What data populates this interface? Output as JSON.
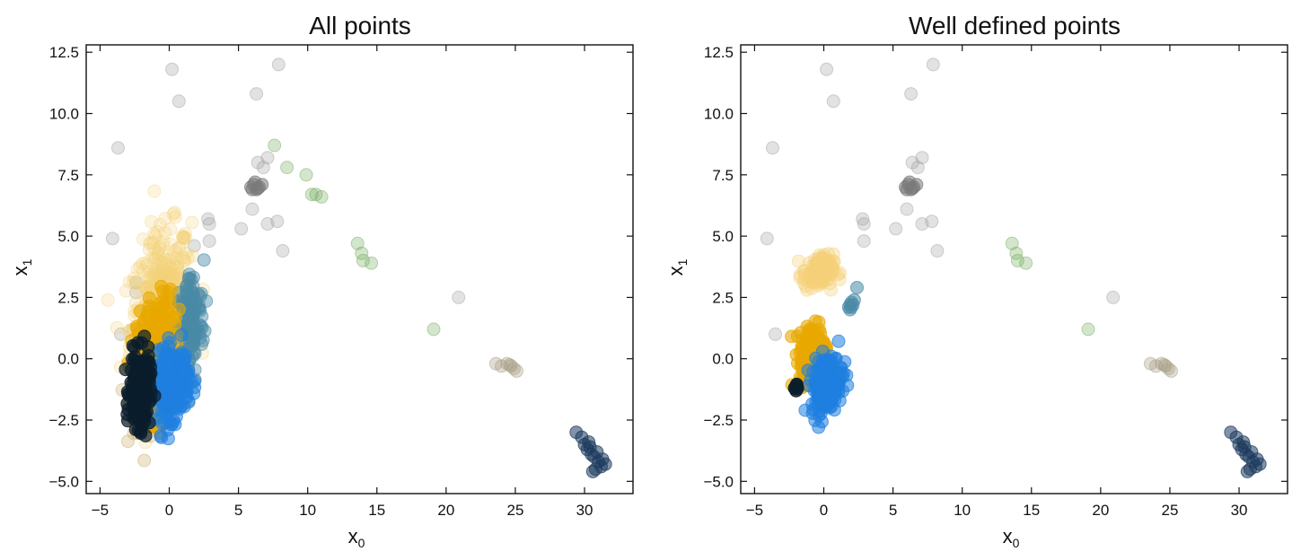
{
  "chart_data": [
    {
      "type": "scatter",
      "title": "All points",
      "xlabel": "x",
      "xlabel_sub": "0",
      "ylabel": "x",
      "ylabel_sub": "1",
      "xlim": [
        -6,
        33.5
      ],
      "ylim": [
        -5.5,
        12.8
      ],
      "xticks": [
        -5,
        0,
        5,
        10,
        15,
        20,
        25,
        30
      ],
      "xtick_labels": [
        "−5",
        "0",
        "5",
        "10",
        "15",
        "20",
        "25",
        "30"
      ],
      "yticks": [
        -5.0,
        -2.5,
        0.0,
        2.5,
        5.0,
        7.5,
        10.0,
        12.5
      ],
      "ytick_labels": [
        "−5.0",
        "−2.5",
        "0.0",
        "2.5",
        "5.0",
        "7.5",
        "10.0",
        "12.5"
      ],
      "grid": false,
      "series": [
        {
          "color": "#9e9e9e",
          "opacity": 0.3,
          "points": [
            [
              -4.1,
              4.9
            ],
            [
              -3.7,
              8.6
            ],
            [
              -3.5,
              1.0
            ],
            [
              -2.4,
              2.7
            ],
            [
              -2.4,
              3.1
            ],
            [
              -2.6,
              1.2
            ],
            [
              0.2,
              11.8
            ],
            [
              0.7,
              10.5
            ],
            [
              1.8,
              4.6
            ],
            [
              2.8,
              5.7
            ],
            [
              2.9,
              4.8
            ],
            [
              2.9,
              5.5
            ],
            [
              5.2,
              5.3
            ],
            [
              6.0,
              6.1
            ],
            [
              6.3,
              10.8
            ],
            [
              6.4,
              8.0
            ],
            [
              6.8,
              7.8
            ],
            [
              7.1,
              8.2
            ],
            [
              7.1,
              5.5
            ],
            [
              7.8,
              5.6
            ],
            [
              7.9,
              12.0
            ],
            [
              8.2,
              4.4
            ],
            [
              20.9,
              2.5
            ]
          ]
        },
        {
          "color": "#7a7a7a",
          "opacity": 0.55,
          "points": [
            [
              5.9,
              7.0
            ],
            [
              6.1,
              7.1
            ],
            [
              6.3,
              6.9
            ],
            [
              6.5,
              7.0
            ],
            [
              6.2,
              7.2
            ],
            [
              6.7,
              7.1
            ],
            [
              6.4,
              6.95
            ],
            [
              6.0,
              6.9
            ]
          ]
        },
        {
          "color": "#6fa85b",
          "opacity": 0.3,
          "points": [
            [
              7.6,
              8.7
            ],
            [
              8.5,
              7.8
            ],
            [
              9.9,
              7.5
            ],
            [
              10.3,
              6.7
            ],
            [
              10.6,
              6.7
            ],
            [
              11.0,
              6.6
            ],
            [
              13.6,
              4.7
            ],
            [
              13.9,
              4.3
            ],
            [
              14.0,
              4.0
            ],
            [
              14.6,
              3.9
            ],
            [
              19.1,
              1.2
            ]
          ]
        },
        {
          "color": "#a79f85",
          "opacity": 0.35,
          "points": [
            [
              23.6,
              -0.2
            ],
            [
              24.0,
              -0.3
            ],
            [
              24.4,
              -0.2
            ],
            [
              24.7,
              -0.3
            ],
            [
              24.9,
              -0.4
            ],
            [
              25.1,
              -0.5
            ],
            [
              24.6,
              -0.25
            ]
          ]
        },
        {
          "color": "#1d3a5e",
          "opacity": 0.55,
          "points": [
            [
              29.4,
              -3.0
            ],
            [
              29.8,
              -3.2
            ],
            [
              30.0,
              -3.5
            ],
            [
              30.2,
              -3.7
            ],
            [
              30.4,
              -3.6
            ],
            [
              30.5,
              -3.9
            ],
            [
              30.7,
              -4.0
            ],
            [
              30.9,
              -3.8
            ],
            [
              31.0,
              -4.2
            ],
            [
              31.2,
              -4.4
            ],
            [
              31.5,
              -4.3
            ],
            [
              30.6,
              -4.6
            ],
            [
              30.8,
              -4.5
            ],
            [
              31.3,
              -4.1
            ],
            [
              30.3,
              -3.4
            ]
          ]
        },
        {
          "color": "#f5d27a",
          "opacity": 0.25,
          "cloud": {
            "n": 420,
            "cx": -0.6,
            "cy": 2.1,
            "rx": 1.1,
            "ry": 1.5,
            "slope": 1.25
          }
        },
        {
          "color": "#c8a964",
          "opacity": 0.3,
          "cloud": {
            "n": 120,
            "cx": -1.4,
            "cy": -1.7,
            "rx": 0.7,
            "ry": 0.6,
            "slope": 0.3
          }
        },
        {
          "color": "#4a8aa6",
          "opacity": 0.45,
          "cloud": {
            "n": 140,
            "cx": 1.5,
            "cy": 1.4,
            "rx": 0.5,
            "ry": 1.1,
            "slope": 1.3
          }
        },
        {
          "color": "#e8a800",
          "opacity": 0.6,
          "cloud": {
            "n": 320,
            "cx": -1.0,
            "cy": 0.0,
            "rx": 0.65,
            "ry": 1.2,
            "slope": 1.1
          }
        },
        {
          "color": "#1f7fe0",
          "opacity": 0.55,
          "cloud": {
            "n": 260,
            "cx": 0.2,
            "cy": -1.0,
            "rx": 0.6,
            "ry": 0.7,
            "slope": 0.7
          }
        },
        {
          "color": "#0a1d2c",
          "opacity": 0.7,
          "cloud": {
            "n": 220,
            "cx": -2.1,
            "cy": -1.3,
            "rx": 0.35,
            "ry": 0.75,
            "slope": 0.3
          }
        }
      ]
    },
    {
      "type": "scatter",
      "title": "Well defined points",
      "xlabel": "x",
      "xlabel_sub": "0",
      "ylabel": "x",
      "ylabel_sub": "1",
      "xlim": [
        -6,
        33.5
      ],
      "ylim": [
        -5.5,
        12.8
      ],
      "xticks": [
        -5,
        0,
        5,
        10,
        15,
        20,
        25,
        30
      ],
      "xtick_labels": [
        "−5",
        "0",
        "5",
        "10",
        "15",
        "20",
        "25",
        "30"
      ],
      "yticks": [
        -5.0,
        -2.5,
        0.0,
        2.5,
        5.0,
        7.5,
        10.0,
        12.5
      ],
      "ytick_labels": [
        "−5.0",
        "−2.5",
        "0.0",
        "2.5",
        "5.0",
        "7.5",
        "10.0",
        "12.5"
      ],
      "grid": false,
      "series": [
        {
          "color": "#9e9e9e",
          "opacity": 0.3,
          "points": [
            [
              -4.1,
              4.9
            ],
            [
              -3.7,
              8.6
            ],
            [
              -3.5,
              1.0
            ],
            [
              0.2,
              11.8
            ],
            [
              0.7,
              10.5
            ],
            [
              2.8,
              5.7
            ],
            [
              2.9,
              4.8
            ],
            [
              2.9,
              5.5
            ],
            [
              5.2,
              5.3
            ],
            [
              6.0,
              6.1
            ],
            [
              6.3,
              10.8
            ],
            [
              6.4,
              8.0
            ],
            [
              6.8,
              7.8
            ],
            [
              7.1,
              8.2
            ],
            [
              7.1,
              5.5
            ],
            [
              7.8,
              5.6
            ],
            [
              7.9,
              12.0
            ],
            [
              8.2,
              4.4
            ],
            [
              20.9,
              2.5
            ]
          ]
        },
        {
          "color": "#7a7a7a",
          "opacity": 0.55,
          "points": [
            [
              5.9,
              7.0
            ],
            [
              6.1,
              7.1
            ],
            [
              6.3,
              6.9
            ],
            [
              6.5,
              7.0
            ],
            [
              6.2,
              7.2
            ],
            [
              6.7,
              7.1
            ],
            [
              6.4,
              6.95
            ],
            [
              6.0,
              6.9
            ]
          ]
        },
        {
          "color": "#6fa85b",
          "opacity": 0.3,
          "points": [
            [
              13.6,
              4.7
            ],
            [
              13.9,
              4.3
            ],
            [
              14.0,
              4.0
            ],
            [
              14.6,
              3.9
            ],
            [
              19.1,
              1.2
            ]
          ]
        },
        {
          "color": "#a79f85",
          "opacity": 0.35,
          "points": [
            [
              23.6,
              -0.2
            ],
            [
              24.0,
              -0.3
            ],
            [
              24.4,
              -0.2
            ],
            [
              24.7,
              -0.3
            ],
            [
              24.9,
              -0.4
            ],
            [
              25.1,
              -0.5
            ],
            [
              24.6,
              -0.25
            ]
          ]
        },
        {
          "color": "#1d3a5e",
          "opacity": 0.55,
          "points": [
            [
              29.4,
              -3.0
            ],
            [
              29.8,
              -3.2
            ],
            [
              30.0,
              -3.5
            ],
            [
              30.2,
              -3.7
            ],
            [
              30.4,
              -3.6
            ],
            [
              30.5,
              -3.9
            ],
            [
              30.7,
              -4.0
            ],
            [
              30.9,
              -3.8
            ],
            [
              31.0,
              -4.2
            ],
            [
              31.2,
              -4.4
            ],
            [
              31.5,
              -4.3
            ],
            [
              30.6,
              -4.6
            ],
            [
              30.8,
              -4.5
            ],
            [
              31.3,
              -4.1
            ],
            [
              30.3,
              -3.4
            ]
          ]
        },
        {
          "color": "#f5d27a",
          "opacity": 0.35,
          "cloud": {
            "n": 130,
            "cx": -0.4,
            "cy": 3.5,
            "rx": 0.55,
            "ry": 0.35,
            "slope": 0.2
          }
        },
        {
          "color": "#4a8aa6",
          "opacity": 0.55,
          "points": [
            [
              1.8,
              2.1
            ],
            [
              1.9,
              2.2
            ],
            [
              2.0,
              2.3
            ],
            [
              2.1,
              2.2
            ],
            [
              1.9,
              2.0
            ],
            [
              2.2,
              2.4
            ],
            [
              2.4,
              2.9
            ],
            [
              2.0,
              2.1
            ]
          ]
        },
        {
          "color": "#e8a800",
          "opacity": 0.6,
          "cloud": {
            "n": 200,
            "cx": -0.8,
            "cy": 0.3,
            "rx": 0.45,
            "ry": 0.55,
            "slope": 1.2
          }
        },
        {
          "color": "#1f7fe0",
          "opacity": 0.55,
          "cloud": {
            "n": 220,
            "cx": 0.2,
            "cy": -1.0,
            "rx": 0.55,
            "ry": 0.55,
            "slope": 0.8
          }
        },
        {
          "color": "#0a1d2c",
          "opacity": 0.85,
          "points": [
            [
              -2.0,
              -1.1
            ],
            [
              -1.9,
              -1.2
            ],
            [
              -2.1,
              -1.2
            ],
            [
              -2.0,
              -1.3
            ],
            [
              -1.95,
              -1.05
            ]
          ]
        }
      ]
    }
  ]
}
